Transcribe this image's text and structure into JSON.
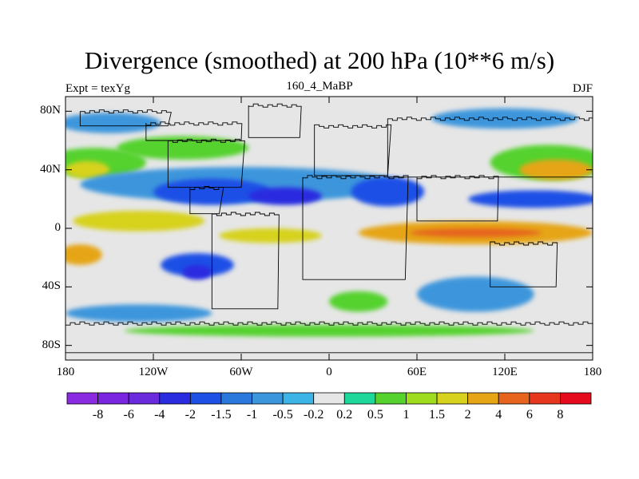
{
  "title": "Divergence (smoothed) at 200 hPa (10**6 m/s)",
  "subtitle_left": "Expt = texYg",
  "subtitle_center": "160_4_MaBP",
  "subtitle_right": "DJF",
  "y_ticks": [
    {
      "label": "80N",
      "lat": 80
    },
    {
      "label": "40N",
      "lat": 40
    },
    {
      "label": "0",
      "lat": 0
    },
    {
      "label": "40S",
      "lat": -40
    },
    {
      "label": "80S",
      "lat": -80
    }
  ],
  "x_ticks": [
    {
      "label": "180",
      "lon": -180
    },
    {
      "label": "120W",
      "lon": -120
    },
    {
      "label": "60W",
      "lon": -60
    },
    {
      "label": "0",
      "lon": 0
    },
    {
      "label": "60E",
      "lon": 60
    },
    {
      "label": "120E",
      "lon": 120
    },
    {
      "label": "180",
      "lon": 180
    }
  ],
  "colorbar": {
    "colors": [
      "#8a2be2",
      "#7a26e0",
      "#6a2bdc",
      "#2b2be0",
      "#1e50e6",
      "#2a78dc",
      "#3c96dc",
      "#3cb4e6",
      "#e6e6e6",
      "#1ed79b",
      "#55d22d",
      "#a0dc1e",
      "#d7d21e",
      "#e6a514",
      "#e6641e",
      "#e6371e",
      "#e60a1e"
    ],
    "labels": [
      "-8",
      "-6",
      "-4",
      "-2",
      "-1.5",
      "-1",
      "-0.5",
      "-0.2",
      "0.2",
      "0.5",
      "1",
      "1.5",
      "2",
      "4",
      "6",
      "8"
    ]
  },
  "map_data": {
    "lat_range": [
      -90,
      90
    ],
    "lon_range": [
      -180,
      180
    ],
    "blobs": [
      {
        "lon": -150,
        "lat": 72,
        "rx": 35,
        "ry": 7,
        "color": "#3c96dc"
      },
      {
        "lon": 120,
        "lat": 75,
        "rx": 50,
        "ry": 7,
        "color": "#3c96dc"
      },
      {
        "lon": -160,
        "lat": 45,
        "rx": 35,
        "ry": 10,
        "color": "#55d22d"
      },
      {
        "lon": -165,
        "lat": 40,
        "rx": 15,
        "ry": 6,
        "color": "#d7d21e"
      },
      {
        "lon": -100,
        "lat": 55,
        "rx": 45,
        "ry": 8,
        "color": "#55d22d"
      },
      {
        "lon": 150,
        "lat": 45,
        "rx": 40,
        "ry": 12,
        "color": "#55d22d"
      },
      {
        "lon": 155,
        "lat": 40,
        "rx": 25,
        "ry": 7,
        "color": "#e6a514"
      },
      {
        "lon": -60,
        "lat": 30,
        "rx": 110,
        "ry": 12,
        "color": "#3c96dc"
      },
      {
        "lon": -80,
        "lat": 25,
        "rx": 40,
        "ry": 9,
        "color": "#1e50e6"
      },
      {
        "lon": 40,
        "lat": 25,
        "rx": 25,
        "ry": 10,
        "color": "#1e50e6"
      },
      {
        "lon": -30,
        "lat": 22,
        "rx": 25,
        "ry": 6,
        "color": "#2b2be0"
      },
      {
        "lon": 140,
        "lat": 20,
        "rx": 45,
        "ry": 6,
        "color": "#1e50e6"
      },
      {
        "lon": -130,
        "lat": 5,
        "rx": 45,
        "ry": 7,
        "color": "#d7d21e"
      },
      {
        "lon": 100,
        "lat": -3,
        "rx": 80,
        "ry": 8,
        "color": "#e6a514"
      },
      {
        "lon": 100,
        "lat": -3,
        "rx": 45,
        "ry": 3,
        "color": "#e6641e"
      },
      {
        "lon": -40,
        "lat": -5,
        "rx": 35,
        "ry": 5,
        "color": "#d7d21e"
      },
      {
        "lon": -170,
        "lat": -18,
        "rx": 15,
        "ry": 7,
        "color": "#e6a514"
      },
      {
        "lon": -90,
        "lat": -25,
        "rx": 25,
        "ry": 8,
        "color": "#1e50e6"
      },
      {
        "lon": -90,
        "lat": -30,
        "rx": 10,
        "ry": 5,
        "color": "#2b2be0"
      },
      {
        "lon": 100,
        "lat": -45,
        "rx": 40,
        "ry": 12,
        "color": "#3c96dc"
      },
      {
        "lon": 20,
        "lat": -50,
        "rx": 20,
        "ry": 7,
        "color": "#55d22d"
      },
      {
        "lon": -130,
        "lat": -58,
        "rx": 50,
        "ry": 6,
        "color": "#3c96dc"
      },
      {
        "lon": 0,
        "lat": -70,
        "rx": 140,
        "ry": 4,
        "color": "#55d22d"
      }
    ],
    "coastline_boxes": [
      {
        "lon": -170,
        "lat": 70,
        "w": 60,
        "h": 10
      },
      {
        "lon": -125,
        "lat": 60,
        "w": 65,
        "h": 12
      },
      {
        "lon": -110,
        "lat": 28,
        "w": 50,
        "h": 32
      },
      {
        "lon": -95,
        "lat": 10,
        "w": 20,
        "h": 18
      },
      {
        "lon": -80,
        "lat": -55,
        "w": 45,
        "h": 65
      },
      {
        "lon": -55,
        "lat": 62,
        "w": 35,
        "h": 22
      },
      {
        "lon": -10,
        "lat": 36,
        "w": 50,
        "h": 34
      },
      {
        "lon": -18,
        "lat": -35,
        "w": 70,
        "h": 70
      },
      {
        "lon": 40,
        "lat": 35,
        "w": 140,
        "h": 40
      },
      {
        "lon": 60,
        "lat": 5,
        "w": 55,
        "h": 30
      },
      {
        "lon": 110,
        "lat": -40,
        "w": 45,
        "h": 30
      },
      {
        "lon": -180,
        "lat": -85,
        "w": 360,
        "h": 20
      }
    ]
  }
}
